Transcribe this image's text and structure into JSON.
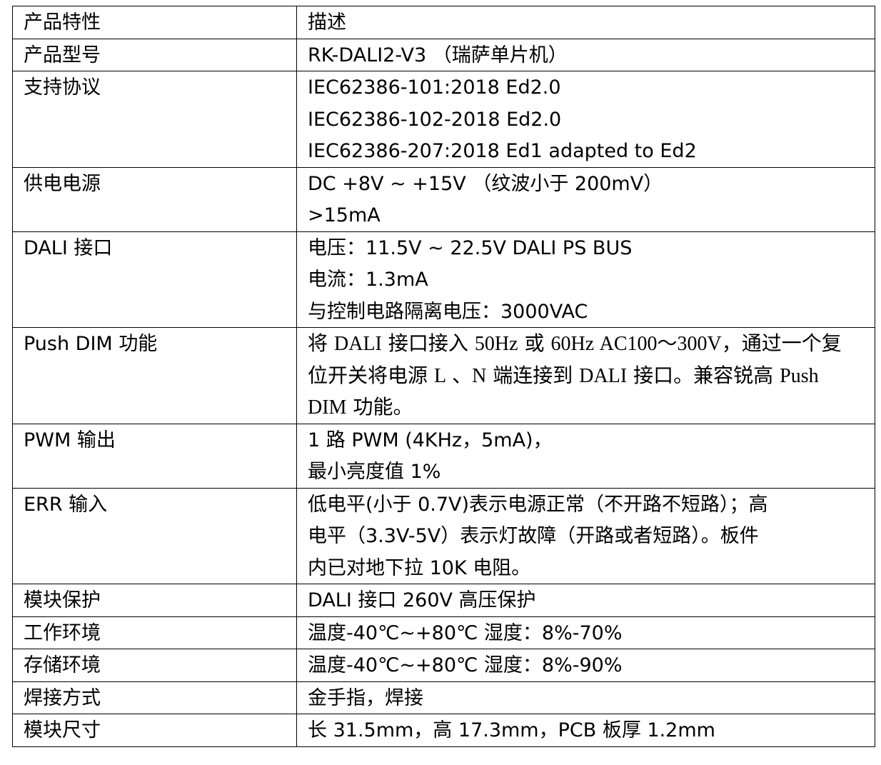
{
  "table": {
    "header": {
      "feature": "产品特性",
      "description": "描述"
    },
    "rows": [
      {
        "feature": "产品型号",
        "description": [
          "RK-DALI2-V3 （瑞萨单片机）"
        ]
      },
      {
        "feature": "支持协议",
        "description": [
          "IEC62386-101:2018 Ed2.0",
          "IEC62386-102-2018 Ed2.0",
          "IEC62386-207:2018 Ed1 adapted to Ed2"
        ]
      },
      {
        "feature": "供电电源",
        "description": [
          "DC +8V ~ +15V （纹波小于 200mV）",
          ">15mA"
        ]
      },
      {
        "feature": "DALI 接口",
        "description": [
          "电压：11.5V ~ 22.5V DALI PS BUS",
          "电流：1.3mA",
          "与控制电路隔离电压：3000VAC"
        ]
      },
      {
        "feature": "Push DIM 功能",
        "description": [
          "将 DALI 接口接入 50Hz 或 60Hz AC100～300V，通过一个复",
          "位开关将电源 L 、N 端连接到 DALI 接口。兼容锐高 Push",
          "DIM 功能。"
        ],
        "serif": true
      },
      {
        "feature": "PWM 输出",
        "description": [
          "1 路 PWM (4KHz，5mA)，",
          "最小亮度值 1%"
        ]
      },
      {
        "feature": "ERR 输入",
        "description": [
          "低电平(小于 0.7V)表示电源正常（不开路不短路）；高",
          "电平（3.3V-5V）表示灯故障（开路或者短路）。板件",
          "内已对地下拉 10K 电阻。"
        ]
      },
      {
        "feature": "模块保护",
        "description": [
          "DALI 接口 260V 高压保护"
        ]
      },
      {
        "feature": "工作环境",
        "description": [
          "温度-40℃~+80℃ 湿度：8%-70%"
        ]
      },
      {
        "feature": "存储环境",
        "description": [
          "温度-40℃~+80℃ 湿度：8%-90%"
        ]
      },
      {
        "feature": "焊接方式",
        "description": [
          "金手指，焊接"
        ]
      },
      {
        "feature": "模块尺寸",
        "description": [
          "长 31.5mm，高 17.3mm，PCB 板厚 1.2mm"
        ]
      }
    ]
  }
}
